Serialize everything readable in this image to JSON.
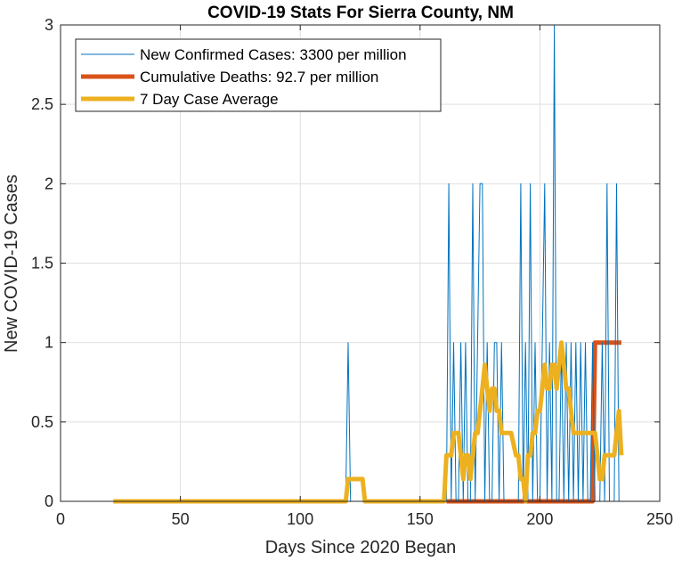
{
  "chart_data": {
    "type": "line",
    "title": "COVID-19 Stats For Sierra County, NM",
    "xlabel": "Days Since 2020 Began",
    "ylabel": "New COVID-19 Cases",
    "xlim": [
      0,
      250
    ],
    "ylim": [
      0,
      3
    ],
    "xticks": [
      "0",
      "50",
      "100",
      "150",
      "200",
      "250"
    ],
    "yticks": [
      "0",
      "0.5",
      "1",
      "1.5",
      "2",
      "2.5",
      "3"
    ],
    "grid": true,
    "legend_position": "top-left",
    "series": [
      {
        "name": "New Confirmed Cases: 3300 per million",
        "color": "#0072BD",
        "x": [
          22,
          119,
          120,
          121,
          161,
          162,
          163,
          164,
          165,
          166,
          167,
          168,
          169,
          170,
          171,
          172,
          173,
          174,
          175,
          176,
          177,
          178,
          179,
          180,
          181,
          182,
          183,
          184,
          185,
          186,
          187,
          188,
          189,
          190,
          191,
          192,
          193,
          194,
          195,
          196,
          197,
          198,
          199,
          200,
          201,
          202,
          203,
          204,
          205,
          206,
          207,
          208,
          209,
          210,
          211,
          212,
          213,
          214,
          215,
          216,
          217,
          218,
          219,
          220,
          221,
          222,
          223,
          224,
          225,
          226,
          227,
          228,
          229,
          230,
          231,
          232,
          233,
          234
        ],
        "y": [
          0,
          0,
          1,
          0,
          0,
          2,
          0,
          1,
          0,
          0,
          1,
          0,
          1,
          0,
          0,
          2,
          0,
          1,
          2,
          2,
          0,
          1,
          0,
          0,
          1,
          1,
          0,
          1,
          0,
          0,
          0,
          0,
          0,
          0,
          0,
          2,
          0,
          1,
          0,
          2,
          0,
          1,
          0,
          0,
          1,
          2,
          0,
          1,
          0,
          3,
          0,
          0,
          1,
          0,
          1,
          0,
          1,
          0,
          1,
          0,
          1,
          0,
          1,
          0,
          0,
          1,
          0,
          0,
          0,
          1,
          0,
          2,
          0,
          0,
          0,
          2,
          0,
          0
        ]
      },
      {
        "name": "Cumulative Deaths: 92.7 per million",
        "color": "#D95319",
        "x": [
          161,
          222,
          223,
          234
        ],
        "y": [
          0,
          0,
          1,
          1
        ]
      },
      {
        "name": "7 Day Case Average",
        "color": "#EDB120",
        "x": [
          22,
          119,
          120,
          126,
          127,
          160,
          161,
          163,
          164,
          166,
          167,
          168,
          169,
          170,
          171,
          172,
          173,
          174,
          176,
          177,
          178,
          179,
          180,
          181,
          182,
          183,
          184,
          185,
          186,
          187,
          188,
          190,
          191,
          192,
          193,
          194,
          195,
          196,
          197,
          198,
          199,
          200,
          201,
          202,
          203,
          204,
          205,
          206,
          207,
          208,
          209,
          210,
          211,
          212,
          213,
          214,
          215,
          216,
          217,
          218,
          220,
          221,
          222,
          223,
          224,
          225,
          226,
          227,
          228,
          229,
          230,
          231,
          232,
          233,
          234
        ],
        "y": [
          0,
          0,
          0.14,
          0.14,
          0,
          0,
          0.29,
          0.29,
          0.43,
          0.43,
          0.29,
          0.14,
          0.29,
          0.29,
          0.14,
          0.29,
          0.43,
          0.43,
          0.71,
          0.86,
          0.71,
          0.57,
          0.71,
          0.71,
          0.57,
          0.57,
          0.43,
          0.43,
          0.43,
          0.43,
          0.43,
          0.29,
          0.29,
          0.14,
          0.14,
          0.0,
          0.29,
          0.29,
          0.43,
          0.43,
          0.57,
          0.57,
          0.71,
          0.86,
          0.71,
          0.71,
          0.86,
          0.86,
          0.71,
          0.86,
          1.0,
          0.86,
          0.71,
          0.71,
          0.57,
          0.43,
          0.43,
          0.43,
          0.43,
          0.43,
          0.43,
          0.43,
          0.43,
          0.43,
          0.29,
          0.14,
          0.14,
          0.29,
          0.29,
          0.29,
          0.29,
          0.29,
          0.43,
          0.57,
          0.29
        ]
      }
    ]
  }
}
